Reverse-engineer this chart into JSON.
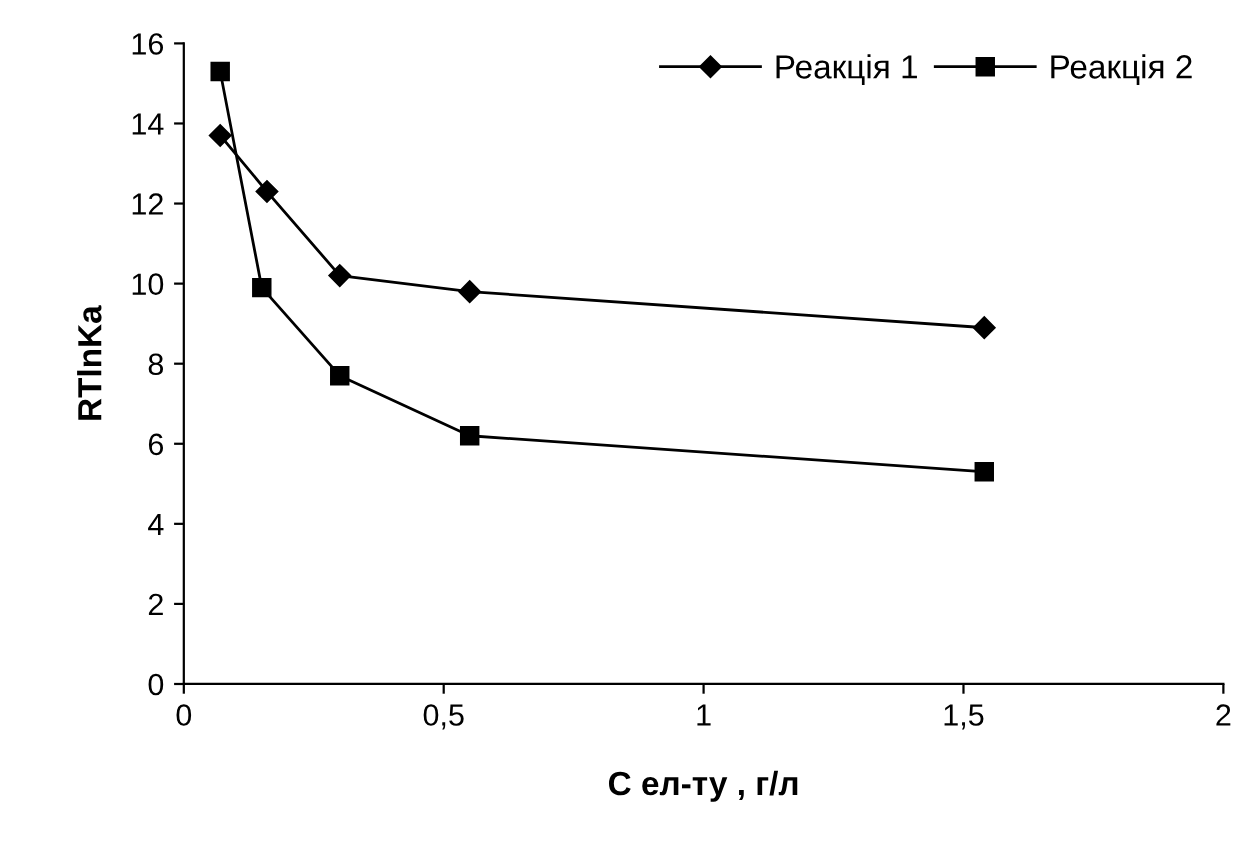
{
  "chart_data": {
    "type": "line",
    "xlabel": "С ел-ту , г/л",
    "ylabel": "RTlnKa",
    "xlim": [
      0,
      2
    ],
    "xticks": [
      0,
      {
        "value": 0.5,
        "label": "0,5"
      },
      1,
      {
        "value": 1.5,
        "label": "1,5"
      },
      2
    ],
    "ylim": [
      0,
      16
    ],
    "yticks": [
      0,
      2,
      4,
      6,
      8,
      10,
      12,
      14,
      16
    ],
    "grid": false,
    "legend": "top right",
    "line_style": "solid",
    "series": [
      {
        "name": "Реакція 1",
        "color": "#000000",
        "marker": "diamond",
        "x": [
          0.07,
          0.16,
          0.3,
          0.55,
          1.54
        ],
        "values": [
          13.7,
          12.3,
          10.2,
          9.8,
          8.9
        ]
      },
      {
        "name": "Реакція 2",
        "color": "#000000",
        "marker": "square",
        "x": [
          0.07,
          0.15,
          0.3,
          0.55,
          1.54
        ],
        "values": [
          15.3,
          9.9,
          7.7,
          6.2,
          5.3
        ]
      }
    ]
  }
}
